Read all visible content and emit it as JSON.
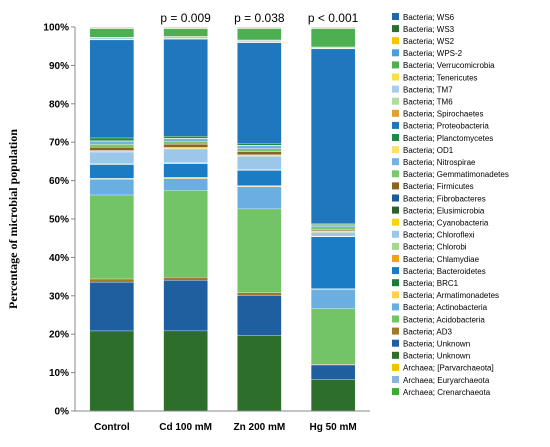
{
  "chart_data": {
    "type": "bar",
    "stacked": true,
    "ylabel": "Percentage of microbial population",
    "xlabel": "",
    "ylim": [
      0,
      100
    ],
    "yticks": [
      "0%",
      "10%",
      "20%",
      "30%",
      "40%",
      "50%",
      "60%",
      "70%",
      "80%",
      "90%",
      "100%"
    ],
    "grid": false,
    "legend_position": "right",
    "categories": [
      "Control",
      "Cd 100 mM",
      "Zn 200 mM",
      "Hg 50 mM"
    ],
    "annotations": [
      "",
      "p = 0.009",
      "p = 0.038",
      "p < 0.001"
    ],
    "series": [
      {
        "name": "Archaea; Crenarchaeota",
        "color": "#3aaa35",
        "values": [
          0,
          0,
          0,
          0
        ]
      },
      {
        "name": "Archaea; Euryarchaeota",
        "color": "#8ab4e0",
        "values": [
          0,
          0,
          0,
          0
        ]
      },
      {
        "name": "Archaea; [Parvarchaeota]",
        "color": "#f2c200",
        "values": [
          0,
          0,
          0,
          0
        ]
      },
      {
        "name": "Bacteria; Unknown",
        "color": "#2d6e2a",
        "values": [
          20.5,
          20.3,
          19.8,
          8.2
        ]
      },
      {
        "name": "Bacteria; Unknown",
        "color": "#1f5fa0",
        "values": [
          12.5,
          12.8,
          10.5,
          3.8
        ]
      },
      {
        "name": "Bacteria; AD3",
        "color": "#a0782a",
        "values": [
          0.8,
          0.8,
          0.7,
          0.2
        ]
      },
      {
        "name": "Bacteria; Acidobacteria",
        "color": "#72c466",
        "values": [
          21.5,
          22.0,
          22.0,
          14.5
        ]
      },
      {
        "name": "Bacteria; Actinobacteria",
        "color": "#6aaee2",
        "values": [
          4.0,
          3.0,
          5.8,
          5.0
        ]
      },
      {
        "name": "Bacteria; Armatimonadetes",
        "color": "#ffd24d",
        "values": [
          0.2,
          0.2,
          0.2,
          0.1
        ]
      },
      {
        "name": "Bacteria; BRC1",
        "color": "#1e7a3a",
        "values": [
          0.1,
          0.1,
          0.1,
          0.1
        ]
      },
      {
        "name": "Bacteria; Bacteroidetes",
        "color": "#1a7cc4",
        "values": [
          3.5,
          3.5,
          4.0,
          13.5
        ]
      },
      {
        "name": "Bacteria; Chlamydiae",
        "color": "#f0a020",
        "values": [
          0.1,
          0.1,
          0.1,
          0.1
        ]
      },
      {
        "name": "Bacteria; Chlorobi",
        "color": "#a7d68e",
        "values": [
          0.1,
          0.1,
          0.1,
          0.1
        ]
      },
      {
        "name": "Bacteria; Chloroflexi",
        "color": "#9cc6ea",
        "values": [
          3.0,
          3.5,
          3.5,
          1.0
        ]
      },
      {
        "name": "Bacteria; Cyanobacteria",
        "color": "#f5d800",
        "values": [
          0.2,
          0.2,
          0.2,
          0.2
        ]
      },
      {
        "name": "Bacteria; Elusimicrobia",
        "color": "#2c5e2e",
        "values": [
          0.1,
          0.1,
          0.1,
          0.1
        ]
      },
      {
        "name": "Bacteria; Fibrobacteres",
        "color": "#1d5a96",
        "values": [
          0.1,
          0.1,
          0.1,
          0.1
        ]
      },
      {
        "name": "Bacteria; Firmicutes",
        "color": "#8a6422",
        "values": [
          0.8,
          0.8,
          0.8,
          0.3
        ]
      },
      {
        "name": "Bacteria; Gemmatimonadetes",
        "color": "#7cc770",
        "values": [
          0.8,
          0.6,
          0.8,
          0.7
        ]
      },
      {
        "name": "Bacteria; Nitrospirae",
        "color": "#74b2e4",
        "values": [
          0.8,
          0.8,
          0.8,
          0.5
        ]
      },
      {
        "name": "Bacteria; OD1",
        "color": "#ffe066",
        "values": [
          0.1,
          0.1,
          0.1,
          0.1
        ]
      },
      {
        "name": "Bacteria; Planctomycetes",
        "color": "#1f8a45",
        "values": [
          0.7,
          0.5,
          0.5,
          0.2
        ]
      },
      {
        "name": "Bacteria; Proteobacteria",
        "color": "#1f77be",
        "values": [
          25.1,
          24.6,
          26.4,
          45.6
        ]
      },
      {
        "name": "Bacteria; Spirochaetes",
        "color": "#e0a030",
        "values": [
          0.1,
          0.1,
          0.1,
          0.1
        ]
      },
      {
        "name": "Bacteria; TM6",
        "color": "#b0dca0",
        "values": [
          0.1,
          0.1,
          0.1,
          0.1
        ]
      },
      {
        "name": "Bacteria; TM7",
        "color": "#a8cdee",
        "values": [
          0.4,
          0.4,
          0.4,
          0.2
        ]
      },
      {
        "name": "Bacteria; Tenericutes",
        "color": "#f7e040",
        "values": [
          0.1,
          0.1,
          0.1,
          0.1
        ]
      },
      {
        "name": "Bacteria; Verrucomicrobia",
        "color": "#4caf50",
        "values": [
          2.2,
          2.0,
          3.0,
          4.8
        ]
      },
      {
        "name": "Bacteria; WPS-2",
        "color": "#4aa0dc",
        "values": [
          0.1,
          0.1,
          0.1,
          0.1
        ]
      },
      {
        "name": "Bacteria; WS2",
        "color": "#f7c600",
        "values": [
          0.1,
          0.1,
          0.1,
          0.1
        ]
      },
      {
        "name": "Bacteria; WS3",
        "color": "#2a6e30",
        "values": [
          0.1,
          0.1,
          0.1,
          0.1
        ]
      },
      {
        "name": "Bacteria; WS6",
        "color": "#1f66ad",
        "values": [
          0.1,
          0.1,
          0.1,
          0.1
        ]
      }
    ]
  }
}
